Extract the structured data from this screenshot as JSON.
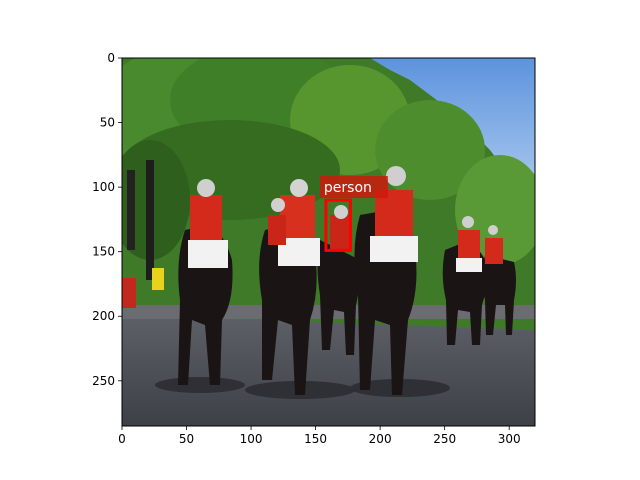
{
  "image": {
    "description_free": true,
    "x_range": [
      0,
      320
    ],
    "y_range": [
      0,
      285
    ],
    "y_inverted": true
  },
  "axes": {
    "x_ticks": [
      {
        "value": 0,
        "label": "0"
      },
      {
        "value": 50,
        "label": "50"
      },
      {
        "value": 100,
        "label": "100"
      },
      {
        "value": 150,
        "label": "150"
      },
      {
        "value": 200,
        "label": "200"
      },
      {
        "value": 250,
        "label": "250"
      },
      {
        "value": 300,
        "label": "300"
      }
    ],
    "y_ticks": [
      {
        "value": 0,
        "label": "0"
      },
      {
        "value": 50,
        "label": "50"
      },
      {
        "value": 100,
        "label": "100"
      },
      {
        "value": 150,
        "label": "150"
      },
      {
        "value": 200,
        "label": "200"
      },
      {
        "value": 250,
        "label": "250"
      }
    ]
  },
  "detections": [
    {
      "label": "person",
      "box": {
        "x_min": 158,
        "y_min": 110,
        "x_max": 177,
        "y_max": 149
      },
      "color": "#ff0000"
    }
  ],
  "colors": {
    "box": "#ff0000",
    "label_bg": "#cc1a0d"
  }
}
